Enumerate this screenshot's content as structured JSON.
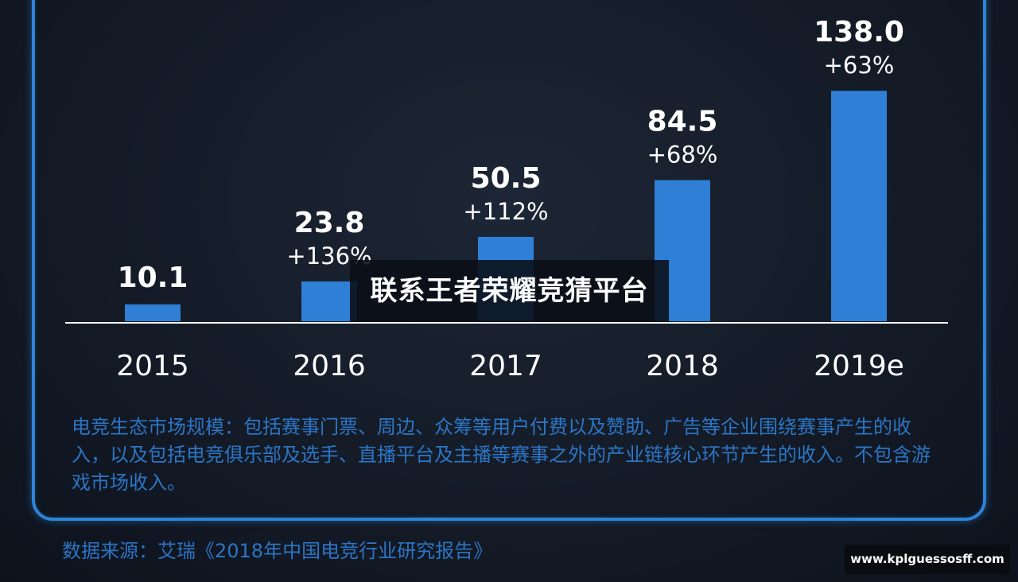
{
  "chart_data": {
    "type": "bar",
    "categories": [
      "2015",
      "2016",
      "2017",
      "2018",
      "2019e"
    ],
    "values": [
      10.1,
      23.8,
      50.5,
      84.5,
      138.0
    ],
    "value_labels": [
      "10.1",
      "23.8",
      "50.5",
      "84.5",
      "138.0"
    ],
    "growth_labels": [
      "",
      "+136%",
      "+112%",
      "+68%",
      "+63%"
    ],
    "title": "",
    "xlabel": "",
    "ylabel": "",
    "ylim": [
      0,
      150
    ],
    "grid": false,
    "bar_color": "#2f7fd6"
  },
  "note": "电竞生态市场规模：包括赛事门票、周边、众筹等用户付费以及赞助、广告等企业围绕赛事产生的收入，以及包括电竞俱乐部及选手、直播平台及主播等赛事之外的产业链核心环节产生的收入。不包含游戏市场收入。",
  "source": "数据来源：艾瑞《2018年中国电竞行业研究报告》",
  "overlay_banner": "联系王者荣耀竞猜平台",
  "watermark_url": "www.kplguessosff.com",
  "colors": {
    "accent": "#2d84d6",
    "background": "#141b27"
  }
}
